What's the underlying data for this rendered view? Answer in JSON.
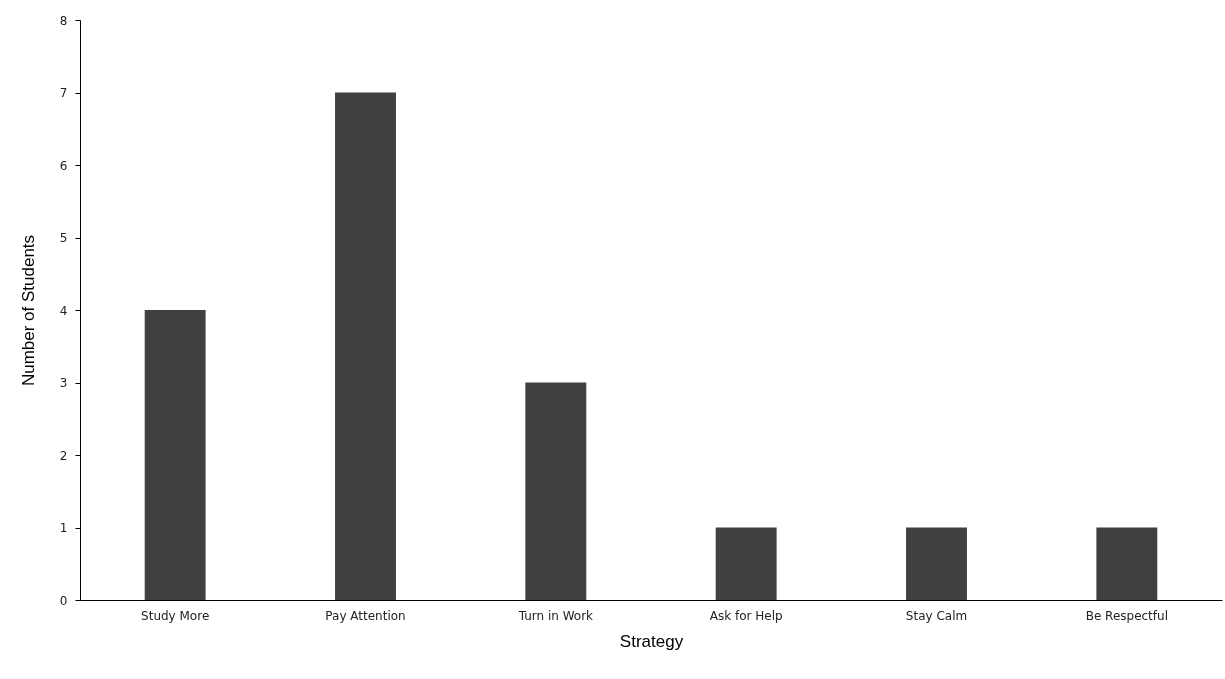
{
  "chart_data": {
    "type": "bar",
    "xlabel": "Strategy",
    "ylabel": "Number of Students",
    "categories": [
      "Study More",
      "Pay Attention",
      "Turn in Work",
      "Ask for Help",
      "Stay Calm",
      "Be Respectful"
    ],
    "values": [
      4,
      7,
      3,
      1,
      1,
      1
    ],
    "color": "#404040",
    "ylim": [
      0,
      8
    ],
    "yticks": [
      0,
      1,
      2,
      3,
      4,
      5,
      6,
      7,
      8
    ],
    "grid": false
  }
}
